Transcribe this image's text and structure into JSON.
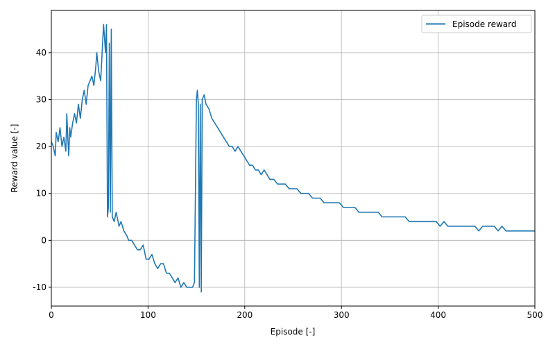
{
  "chart_data": {
    "type": "line",
    "title": "",
    "xlabel": "Episode [-]",
    "ylabel": "Reward value [-]",
    "xlim": [
      0,
      500
    ],
    "ylim": [
      -14,
      49
    ],
    "xticks": [
      0,
      100,
      200,
      300,
      400,
      500
    ],
    "yticks": [
      -10,
      0,
      10,
      20,
      30,
      40
    ],
    "grid": true,
    "legend_position": "top-right",
    "series": [
      {
        "name": "Episode reward",
        "color": "#1f77b4",
        "points": [
          [
            0,
            21
          ],
          [
            2,
            20
          ],
          [
            4,
            18
          ],
          [
            5,
            23
          ],
          [
            7,
            21
          ],
          [
            9,
            24
          ],
          [
            11,
            20
          ],
          [
            13,
            22
          ],
          [
            15,
            19
          ],
          [
            16,
            27
          ],
          [
            17,
            22
          ],
          [
            18,
            18
          ],
          [
            19,
            24
          ],
          [
            20,
            22
          ],
          [
            22,
            25
          ],
          [
            24,
            27
          ],
          [
            26,
            25
          ],
          [
            28,
            29
          ],
          [
            30,
            26
          ],
          [
            32,
            30
          ],
          [
            34,
            32
          ],
          [
            36,
            29
          ],
          [
            38,
            33
          ],
          [
            40,
            34
          ],
          [
            42,
            35
          ],
          [
            44,
            33
          ],
          [
            46,
            37
          ],
          [
            47,
            40
          ],
          [
            49,
            36
          ],
          [
            51,
            34
          ],
          [
            53,
            42
          ],
          [
            54,
            46
          ],
          [
            55,
            43
          ],
          [
            56,
            40
          ],
          [
            57,
            46
          ],
          [
            58,
            5
          ],
          [
            59,
            7
          ],
          [
            60,
            42
          ],
          [
            61,
            6
          ],
          [
            62,
            45
          ],
          [
            63,
            5
          ],
          [
            65,
            4
          ],
          [
            67,
            6
          ],
          [
            70,
            3
          ],
          [
            72,
            4
          ],
          [
            75,
            2
          ],
          [
            78,
            1
          ],
          [
            80,
            0
          ],
          [
            83,
            0
          ],
          [
            86,
            -1
          ],
          [
            89,
            -2
          ],
          [
            92,
            -2
          ],
          [
            95,
            -1
          ],
          [
            98,
            -4
          ],
          [
            101,
            -4
          ],
          [
            104,
            -3
          ],
          [
            107,
            -5
          ],
          [
            110,
            -6
          ],
          [
            113,
            -5
          ],
          [
            116,
            -5
          ],
          [
            119,
            -7
          ],
          [
            122,
            -7
          ],
          [
            125,
            -8
          ],
          [
            128,
            -9
          ],
          [
            131,
            -8
          ],
          [
            134,
            -10
          ],
          [
            137,
            -9
          ],
          [
            140,
            -10
          ],
          [
            143,
            -10
          ],
          [
            146,
            -10
          ],
          [
            148,
            -9
          ],
          [
            150,
            30
          ],
          [
            151,
            32
          ],
          [
            152,
            29
          ],
          [
            153,
            -10
          ],
          [
            154,
            29
          ],
          [
            155,
            -11
          ],
          [
            156,
            30
          ],
          [
            158,
            31
          ],
          [
            160,
            29
          ],
          [
            163,
            28
          ],
          [
            166,
            26
          ],
          [
            169,
            25
          ],
          [
            172,
            24
          ],
          [
            175,
            23
          ],
          [
            178,
            22
          ],
          [
            181,
            21
          ],
          [
            184,
            20
          ],
          [
            187,
            20
          ],
          [
            190,
            19
          ],
          [
            193,
            20
          ],
          [
            196,
            19
          ],
          [
            199,
            18
          ],
          [
            202,
            17
          ],
          [
            205,
            16
          ],
          [
            208,
            16
          ],
          [
            211,
            15
          ],
          [
            214,
            15
          ],
          [
            217,
            14
          ],
          [
            220,
            15
          ],
          [
            223,
            14
          ],
          [
            226,
            13
          ],
          [
            230,
            13
          ],
          [
            234,
            12
          ],
          [
            238,
            12
          ],
          [
            242,
            12
          ],
          [
            246,
            11
          ],
          [
            250,
            11
          ],
          [
            254,
            11
          ],
          [
            258,
            10
          ],
          [
            262,
            10
          ],
          [
            266,
            10
          ],
          [
            270,
            9
          ],
          [
            274,
            9
          ],
          [
            278,
            9
          ],
          [
            282,
            8
          ],
          [
            286,
            8
          ],
          [
            290,
            8
          ],
          [
            294,
            8
          ],
          [
            298,
            8
          ],
          [
            302,
            7
          ],
          [
            306,
            7
          ],
          [
            310,
            7
          ],
          [
            314,
            7
          ],
          [
            318,
            6
          ],
          [
            322,
            6
          ],
          [
            326,
            6
          ],
          [
            330,
            6
          ],
          [
            334,
            6
          ],
          [
            338,
            6
          ],
          [
            342,
            5
          ],
          [
            346,
            5
          ],
          [
            350,
            5
          ],
          [
            354,
            5
          ],
          [
            358,
            5
          ],
          [
            362,
            5
          ],
          [
            366,
            5
          ],
          [
            370,
            4
          ],
          [
            374,
            4
          ],
          [
            378,
            4
          ],
          [
            382,
            4
          ],
          [
            386,
            4
          ],
          [
            390,
            4
          ],
          [
            394,
            4
          ],
          [
            398,
            4
          ],
          [
            402,
            3
          ],
          [
            406,
            4
          ],
          [
            410,
            3
          ],
          [
            414,
            3
          ],
          [
            418,
            3
          ],
          [
            422,
            3
          ],
          [
            426,
            3
          ],
          [
            430,
            3
          ],
          [
            434,
            3
          ],
          [
            438,
            3
          ],
          [
            442,
            2
          ],
          [
            446,
            3
          ],
          [
            450,
            3
          ],
          [
            454,
            3
          ],
          [
            458,
            3
          ],
          [
            462,
            2
          ],
          [
            466,
            3
          ],
          [
            470,
            2
          ],
          [
            474,
            2
          ],
          [
            478,
            2
          ],
          [
            482,
            2
          ],
          [
            486,
            2
          ],
          [
            490,
            2
          ],
          [
            494,
            2
          ],
          [
            498,
            2
          ],
          [
            500,
            2
          ]
        ]
      }
    ]
  }
}
